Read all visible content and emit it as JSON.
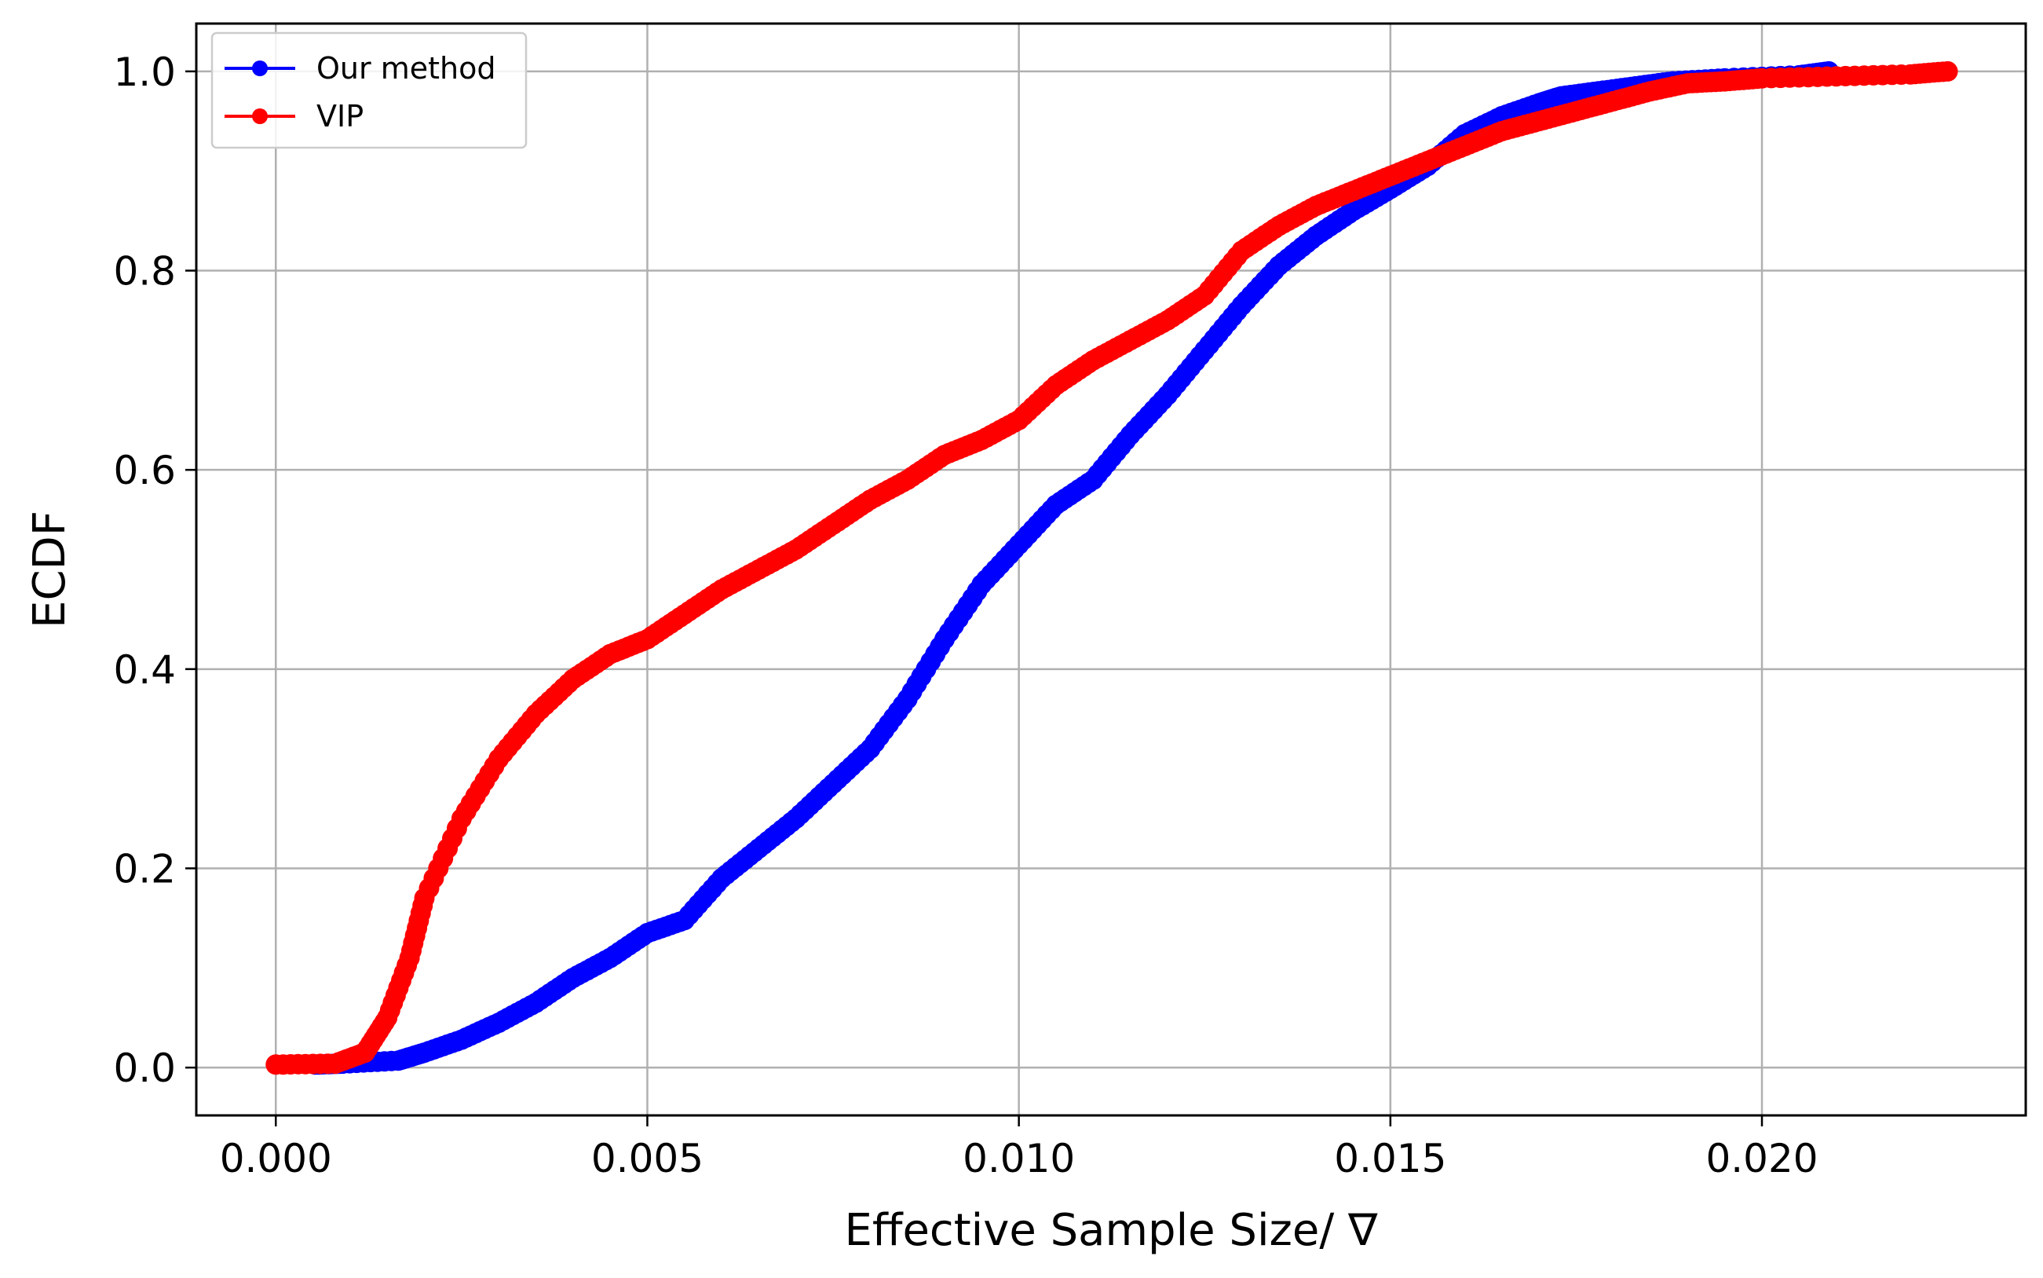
{
  "chart_data": {
    "type": "line",
    "title": "",
    "xlabel": "Effective Sample Size/ ∇",
    "ylabel": "ECDF",
    "xlim": [
      -0.00107,
      0.02355
    ],
    "ylim": [
      -0.048,
      1.048
    ],
    "x_ticks": [
      0.0,
      0.005,
      0.01,
      0.015,
      0.02
    ],
    "x_tick_labels": [
      "0.000",
      "0.005",
      "0.010",
      "0.015",
      "0.020"
    ],
    "y_ticks": [
      0.0,
      0.2,
      0.4,
      0.6,
      0.8,
      1.0
    ],
    "y_tick_labels": [
      "0.0",
      "0.2",
      "0.4",
      "0.6",
      "0.8",
      "1.0"
    ],
    "grid": true,
    "legend_position": "upper-left",
    "series": [
      {
        "name": "Our method",
        "color": "#0000ff",
        "marker": "circle",
        "knots": [
          [
            0.00053,
            0.003
          ],
          [
            0.0009,
            0.004
          ],
          [
            0.00165,
            0.007
          ],
          [
            0.002,
            0.015
          ],
          [
            0.0025,
            0.028
          ],
          [
            0.003,
            0.045
          ],
          [
            0.0035,
            0.065
          ],
          [
            0.004,
            0.09
          ],
          [
            0.0045,
            0.11
          ],
          [
            0.005,
            0.135
          ],
          [
            0.0055,
            0.148
          ],
          [
            0.006,
            0.19
          ],
          [
            0.0065,
            0.22
          ],
          [
            0.007,
            0.25
          ],
          [
            0.0075,
            0.285
          ],
          [
            0.008,
            0.32
          ],
          [
            0.0085,
            0.37
          ],
          [
            0.009,
            0.43
          ],
          [
            0.0095,
            0.485
          ],
          [
            0.01,
            0.525
          ],
          [
            0.0105,
            0.565
          ],
          [
            0.011,
            0.59
          ],
          [
            0.0115,
            0.635
          ],
          [
            0.012,
            0.675
          ],
          [
            0.0125,
            0.72
          ],
          [
            0.013,
            0.765
          ],
          [
            0.0135,
            0.805
          ],
          [
            0.014,
            0.835
          ],
          [
            0.0145,
            0.86
          ],
          [
            0.015,
            0.882
          ],
          [
            0.0155,
            0.905
          ],
          [
            0.016,
            0.937
          ],
          [
            0.0165,
            0.955
          ],
          [
            0.017,
            0.968
          ],
          [
            0.0173,
            0.975
          ],
          [
            0.0178,
            0.98
          ],
          [
            0.0183,
            0.985
          ],
          [
            0.0188,
            0.99
          ],
          [
            0.0195,
            0.993
          ],
          [
            0.0205,
            0.996
          ],
          [
            0.0209,
            1.0
          ]
        ]
      },
      {
        "name": "VIP",
        "color": "#ff0000",
        "marker": "circle",
        "knots": [
          [
            0.0,
            0.003
          ],
          [
            0.0008,
            0.004
          ],
          [
            0.0012,
            0.015
          ],
          [
            0.0015,
            0.05
          ],
          [
            0.0018,
            0.11
          ],
          [
            0.002,
            0.17
          ],
          [
            0.0025,
            0.25
          ],
          [
            0.003,
            0.31
          ],
          [
            0.0035,
            0.355
          ],
          [
            0.004,
            0.39
          ],
          [
            0.0045,
            0.415
          ],
          [
            0.005,
            0.43
          ],
          [
            0.0055,
            0.455
          ],
          [
            0.006,
            0.48
          ],
          [
            0.0065,
            0.5
          ],
          [
            0.007,
            0.52
          ],
          [
            0.0075,
            0.545
          ],
          [
            0.008,
            0.57
          ],
          [
            0.0085,
            0.59
          ],
          [
            0.009,
            0.615
          ],
          [
            0.0095,
            0.63
          ],
          [
            0.01,
            0.65
          ],
          [
            0.0105,
            0.685
          ],
          [
            0.011,
            0.71
          ],
          [
            0.0115,
            0.73
          ],
          [
            0.012,
            0.75
          ],
          [
            0.0125,
            0.775
          ],
          [
            0.013,
            0.82
          ],
          [
            0.0135,
            0.845
          ],
          [
            0.014,
            0.865
          ],
          [
            0.0145,
            0.88
          ],
          [
            0.015,
            0.895
          ],
          [
            0.0155,
            0.91
          ],
          [
            0.016,
            0.925
          ],
          [
            0.0165,
            0.94
          ],
          [
            0.017,
            0.95
          ],
          [
            0.0175,
            0.96
          ],
          [
            0.018,
            0.97
          ],
          [
            0.0185,
            0.98
          ],
          [
            0.019,
            0.988
          ],
          [
            0.0195,
            0.99
          ],
          [
            0.02,
            0.993
          ],
          [
            0.021,
            0.995
          ],
          [
            0.022,
            0.997
          ],
          [
            0.0225,
            1.0
          ]
        ]
      }
    ]
  }
}
